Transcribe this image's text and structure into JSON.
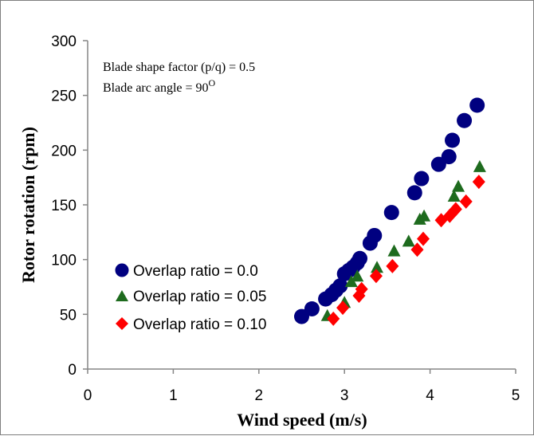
{
  "chart_data": {
    "type": "scatter",
    "title": "",
    "xlabel": "Wind  speed (m/s)",
    "ylabel": "Rotor rotation (rpm)",
    "xlim": [
      0,
      5
    ],
    "ylim": [
      0,
      300
    ],
    "x_ticks": [
      "0",
      "1",
      "2",
      "3",
      "4",
      "5"
    ],
    "y_ticks": [
      "0",
      "50",
      "100",
      "150",
      "200",
      "250",
      "300"
    ],
    "grid": false,
    "legend_position": "lower-left",
    "annotations": {
      "line1": "Blade shape factor  (p/q) = 0.5",
      "line2": "Blade arc angle = 90",
      "line2_sup": "O"
    },
    "series": [
      {
        "name": "Overlap ratio = 0.0",
        "marker": "circle",
        "color": "#000080",
        "x": [
          2.5,
          2.62,
          2.78,
          2.85,
          2.9,
          2.95,
          3.0,
          3.05,
          3.1,
          3.15,
          3.18,
          3.3,
          3.35,
          3.55,
          3.82,
          3.9,
          4.1,
          4.22,
          4.26,
          4.4,
          4.55
        ],
        "y": [
          48,
          55,
          64,
          68,
          72,
          76,
          87,
          90,
          93,
          97,
          101,
          115,
          122,
          143,
          161,
          174,
          187,
          194,
          209,
          227,
          241
        ]
      },
      {
        "name": "Overlap ratio = 0.05",
        "marker": "triangle",
        "color": "#1e6b1e",
        "x": [
          2.8,
          3.0,
          3.08,
          3.15,
          3.38,
          3.58,
          3.75,
          3.88,
          3.93,
          4.28,
          4.33,
          4.58
        ],
        "y": [
          49,
          61,
          80,
          85,
          93,
          108,
          117,
          137,
          140,
          158,
          167,
          185
        ]
      },
      {
        "name": "Overlap ratio = 0.10",
        "marker": "diamond",
        "color": "#ff0000",
        "x": [
          2.87,
          2.98,
          3.17,
          3.2,
          3.37,
          3.56,
          3.85,
          3.92,
          4.13,
          4.23,
          4.3,
          4.42,
          4.57
        ],
        "y": [
          46,
          56,
          67,
          73,
          85,
          94,
          109,
          119,
          136,
          140,
          146,
          153,
          171
        ]
      }
    ]
  }
}
